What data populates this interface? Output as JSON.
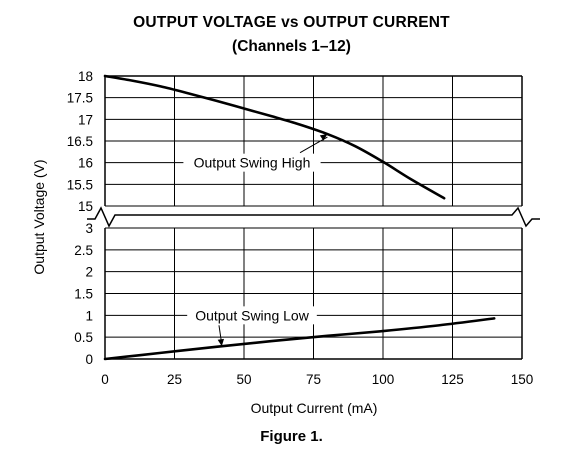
{
  "figure": {
    "title": "OUTPUT VOLTAGE vs OUTPUT CURRENT",
    "subtitle": "(Channels 1–12)",
    "caption": "Figure 1."
  },
  "chart_data": {
    "type": "line",
    "title": "OUTPUT VOLTAGE vs OUTPUT CURRENT",
    "subtitle": "(Channels 1–12)",
    "xlabel": "Output Current (mA)",
    "ylabel": "Output Voltage (V)",
    "xlim": [
      0,
      150
    ],
    "x_ticks": [
      "0",
      "25",
      "50",
      "75",
      "100",
      "125",
      "150"
    ],
    "x_tick_values": [
      0,
      25,
      50,
      75,
      100,
      125,
      150
    ],
    "y_axis_break": {
      "lower_segment": [
        0,
        3
      ],
      "upper_segment": [
        15,
        18
      ]
    },
    "y_ticks_lower": [
      "0",
      "0.5",
      "1",
      "1.5",
      "2",
      "2.5",
      "3"
    ],
    "y_tick_values_lower": [
      0,
      0.5,
      1,
      1.5,
      2,
      2.5,
      3
    ],
    "y_ticks_upper": [
      "15",
      "15.5",
      "16",
      "16.5",
      "17",
      "17.5",
      "18"
    ],
    "y_tick_values_upper": [
      15,
      15.5,
      16,
      16.5,
      17,
      17.5,
      18
    ],
    "grid": true,
    "line_color": "#000000",
    "series": [
      {
        "name": "Output Swing High",
        "x": [
          0,
          10,
          20,
          30,
          40,
          50,
          60,
          70,
          80,
          90,
          100,
          110,
          122
        ],
        "y": [
          18.0,
          17.89,
          17.76,
          17.6,
          17.43,
          17.25,
          17.07,
          16.88,
          16.66,
          16.38,
          16.02,
          15.62,
          15.18
        ]
      },
      {
        "name": "Output Swing Low",
        "x": [
          0,
          20,
          40,
          60,
          80,
          100,
          120,
          140
        ],
        "y": [
          0.0,
          0.14,
          0.28,
          0.41,
          0.53,
          0.64,
          0.77,
          0.93
        ]
      }
    ],
    "annotations": [
      {
        "text": "Output Swing High",
        "series": "Output Swing High",
        "points_to_x": 42
      },
      {
        "text": "Output Swing Low",
        "series": "Output Swing Low",
        "points_to_x": 40
      }
    ]
  }
}
